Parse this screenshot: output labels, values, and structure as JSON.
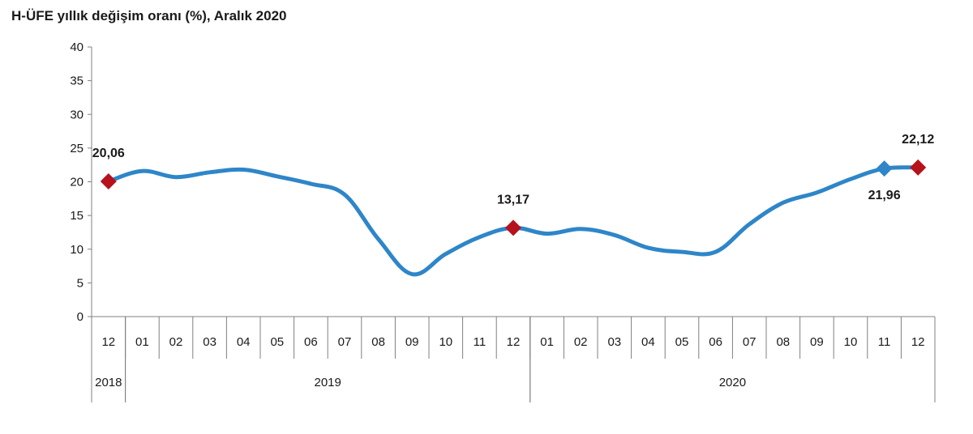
{
  "chart_data": {
    "type": "line",
    "title": "H-ÜFE yıllık değişim oranı (%), Aralık 2020",
    "xlabel": "",
    "ylabel": "",
    "ylim": [
      0,
      40
    ],
    "yticks": [
      "0",
      "5",
      "10",
      "15",
      "20",
      "25",
      "30",
      "35",
      "40"
    ],
    "categories": [
      "12",
      "01",
      "02",
      "03",
      "04",
      "05",
      "06",
      "07",
      "08",
      "09",
      "10",
      "11",
      "12",
      "01",
      "02",
      "03",
      "04",
      "05",
      "06",
      "07",
      "08",
      "09",
      "10",
      "11",
      "12"
    ],
    "year_groups": [
      {
        "label": "2018",
        "start": 0,
        "end": 0
      },
      {
        "label": "2019",
        "start": 1,
        "end": 12
      },
      {
        "label": "2020",
        "start": 13,
        "end": 24
      }
    ],
    "series": [
      {
        "name": "H-ÜFE",
        "color": "#2e86c8",
        "values": [
          20.06,
          21.6,
          20.7,
          21.4,
          21.8,
          20.8,
          19.7,
          18.1,
          11.5,
          6.3,
          9.3,
          11.8,
          13.17,
          12.3,
          13.0,
          12.1,
          10.2,
          9.6,
          9.6,
          13.7,
          16.9,
          18.4,
          20.4,
          21.96,
          22.12
        ]
      }
    ],
    "highlights": [
      {
        "index": 0,
        "label": "20,06",
        "color": "#b5121b",
        "position": "above"
      },
      {
        "index": 12,
        "label": "13,17",
        "color": "#b5121b",
        "position": "above"
      },
      {
        "index": 23,
        "label": "21,96",
        "color": "#2e86c8",
        "position": "below"
      },
      {
        "index": 24,
        "label": "22,12",
        "color": "#b5121b",
        "position": "above"
      }
    ]
  }
}
